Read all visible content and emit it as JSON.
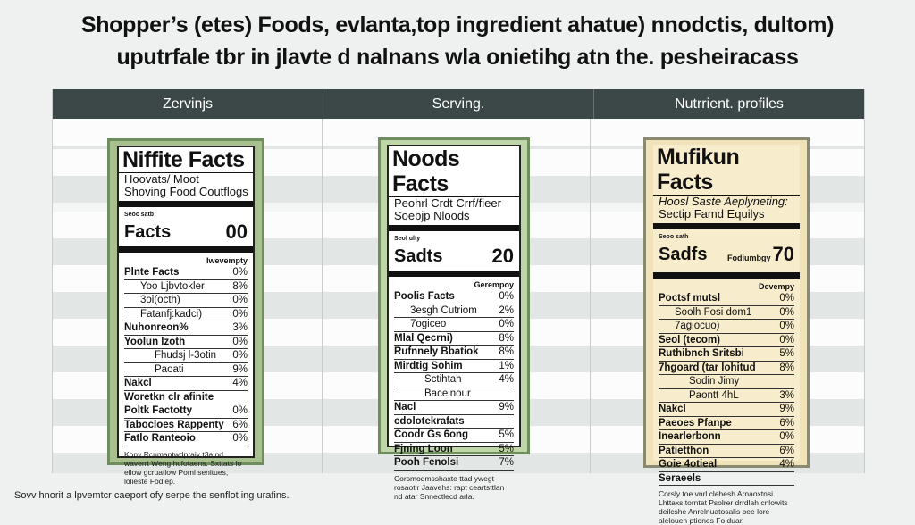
{
  "page": {
    "title_line1": "Shopper’s (etes) Foods, evlanta,top ingredient ahatue) nnodctis, dultom)",
    "title_line2": "uputrfale tbr in jlavte d nalnans wla onietihg atn the. pesheiracass",
    "caption": "Sovv hnorit a lpvemtcr caeport ofy serpe the senflot ing urafins."
  },
  "table": {
    "headers": [
      "Zervinjs",
      "Serving.",
      "Nutrrient. profiles"
    ]
  },
  "labels": [
    {
      "heading": "Niffite Facts",
      "sub1": "Hoovats/ Moot",
      "sub2": "Shoving Food Coutflogs",
      "micro_top": "Seoc satb",
      "serving_label": "Facts",
      "serving_value": "00",
      "micro": "Iwevempty",
      "rows": [
        {
          "n": "Plnte Facts",
          "v": "0%",
          "cls": "bold"
        },
        {
          "n": "Yoo Ljbvtokler",
          "v": "8%",
          "cls": "indent"
        },
        {
          "n": "3oi(octh)",
          "v": "0%",
          "cls": "indent"
        },
        {
          "n": "Fatanfj:kadci)",
          "v": "0%",
          "cls": "indent"
        },
        {
          "n": "Nuhonreon%",
          "v": "3%",
          "cls": "bold"
        },
        {
          "n": "Yoolun lzoth",
          "v": "0%",
          "cls": "bold"
        },
        {
          "n": "Fhudsj l-3otin",
          "v": "0%",
          "cls": "ind2"
        },
        {
          "n": "Paoati",
          "v": "9%",
          "cls": "ind2"
        },
        {
          "n": "Nakcl",
          "v": "4%",
          "cls": "bold"
        },
        {
          "n": "Woretkn clr afinite",
          "v": "",
          "cls": "bold"
        },
        {
          "n": "Poltk Factotty",
          "v": "0%",
          "cls": "bold"
        },
        {
          "n": "Tabocloes Rappenty",
          "v": "6%",
          "cls": "bold"
        },
        {
          "n": "Fatlo Ranteoio",
          "v": "0%",
          "cls": "bold"
        }
      ],
      "foot": "Konv Rcumantwdpraiy t3a nd waverrt Weng hcfotaens. Sxttats lo ellow gcruatlow Poml senitues, lolieste Fodlep."
    },
    {
      "heading": "Noods Facts",
      "sub1": "Peohrl Crdt Crrf/fieer",
      "sub2": "Soebjp Nloods",
      "micro_top": "Seol ulty",
      "serving_label": "Sadts",
      "serving_value": "20",
      "micro": "Gerempoy",
      "rows": [
        {
          "n": "Poolis Facts",
          "v": "0%",
          "cls": "bold"
        },
        {
          "n": "3esgh Cutriom",
          "v": "2%",
          "cls": "indent"
        },
        {
          "n": "7ogiceo",
          "v": "0%",
          "cls": "indent"
        },
        {
          "n": "Mlal Qecrni)",
          "v": "8%",
          "cls": "bold"
        },
        {
          "n": "Rufnnely Bbatiok",
          "v": "8%",
          "cls": "bold"
        },
        {
          "n": "Mirdtig Sohim",
          "v": "1%",
          "cls": "bold"
        },
        {
          "n": "Sctihtah",
          "v": "4%",
          "cls": "ind2"
        },
        {
          "n": "Baceinour",
          "v": "",
          "cls": "ind2"
        },
        {
          "n": "Nacl",
          "v": "9%",
          "cls": "bold"
        },
        {
          "n": "cdolotekrafats",
          "v": "",
          "cls": "bold"
        },
        {
          "n": "Coodr Gs 6ong",
          "v": "5%",
          "cls": "bold"
        },
        {
          "n": "Fjning Loon",
          "v": "5%",
          "cls": "bold"
        },
        {
          "n": "Pooh Fenolsi",
          "v": "7%",
          "cls": "bold"
        }
      ],
      "foot": "Corsmodmsshaxte ttad ywegt rosaotir Jaavehs: rapt ceartsttlan nd atar Snnectlecd arla."
    },
    {
      "heading": "Mufikun Facts",
      "sub1": "Hoosl Saste Aeplyneting:",
      "sub2": "Sectip Famd Equilys",
      "micro_top": "Seoo sath",
      "serving_label": "Sadfs",
      "serving_value": "70",
      "serving_pre": "Fodiumbgy",
      "micro": "Devempy",
      "rows": [
        {
          "n": "Poctsf mutsl",
          "v": "0%",
          "cls": "bold"
        },
        {
          "n": "Soolh Fosi dom1",
          "v": "0%",
          "cls": "indent"
        },
        {
          "n": "7agiocuo)",
          "v": "0%",
          "cls": "indent"
        },
        {
          "n": "Seol (tecom)",
          "v": "0%",
          "cls": "bold"
        },
        {
          "n": "Ruthibnch Sritsbi",
          "v": "5%",
          "cls": "bold"
        },
        {
          "n": "7hgoard (tar lohitud",
          "v": "8%",
          "cls": "bold"
        },
        {
          "n": "Sodin Jimy",
          "v": "",
          "cls": "ind2"
        },
        {
          "n": "Paontt 4hL",
          "v": "3%",
          "cls": "ind2"
        },
        {
          "n": "Nakcl",
          "v": "9%",
          "cls": "bold"
        },
        {
          "n": "Paeoes Pfanpe",
          "v": "6%",
          "cls": "bold"
        },
        {
          "n": "Inearlerbonn",
          "v": "0%",
          "cls": "bold"
        },
        {
          "n": "Patietthon",
          "v": "6%",
          "cls": "bold"
        },
        {
          "n": "Goie 4otieal",
          "v": "4%",
          "cls": "bold"
        },
        {
          "n": "Seraeels",
          "v": "",
          "cls": "bold"
        }
      ],
      "foot": "Corsly toe vnrl clehesh Arnaoxtnsi. Lhttaxs torntat Psolrer drrdlah cnlowits deilcshe Anrelnuatosalis bee lore alelouen ptiones Fo duar."
    }
  ],
  "colors": {
    "header_bg": "#3b4847",
    "label1_bg": "#a8c08e",
    "label2_bg": "#bfd6a8",
    "label3_bg": "#f1e3b9",
    "border_green": "#6f8e5d"
  }
}
